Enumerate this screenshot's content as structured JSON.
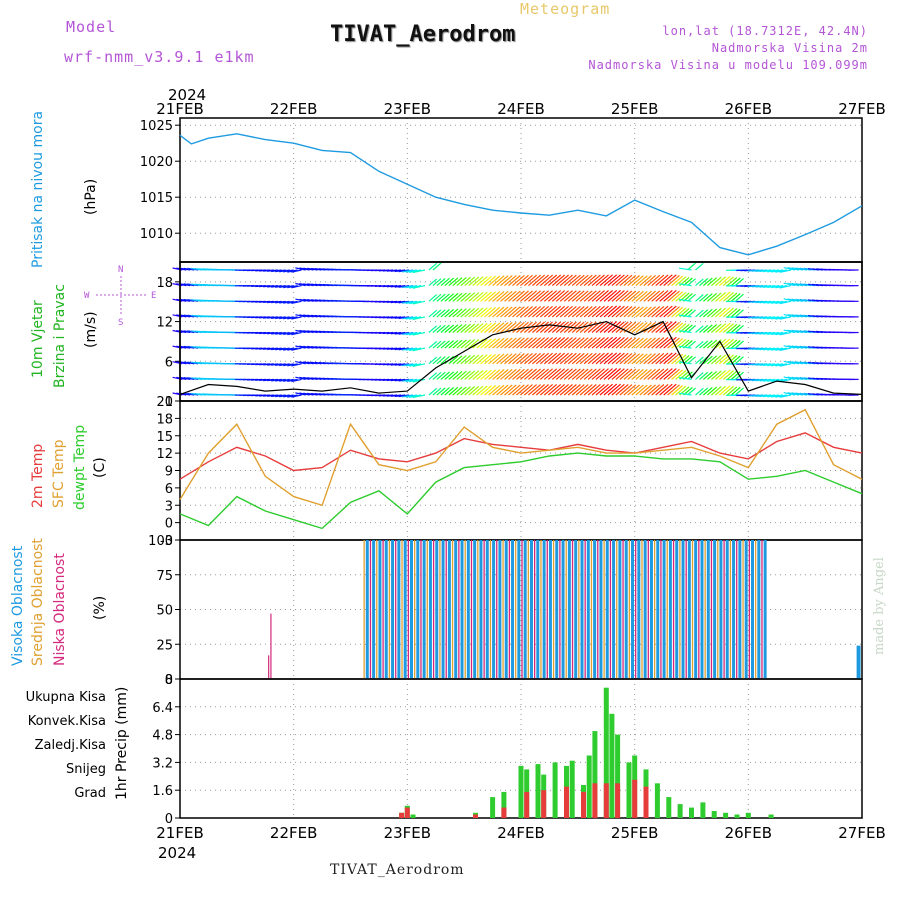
{
  "header": {
    "model_label": "Model",
    "model_name": "wrf-nmm_v3.9.1 e1km",
    "station": "TIVAT_Aerodrom",
    "meteogram": "Meteogram",
    "lonlat": "lon,lat (18.7312E, 42.4N)",
    "altitude": "Nadmorska Visina 2m",
    "model_altitude": "Nadmorska Visina u modelu 109.099m"
  },
  "footer": {
    "station": "TIVAT_Aerodrom",
    "watermark": "made by Angel"
  },
  "x_axis": {
    "year": "2024",
    "dates": [
      "21FEB",
      "22FEB",
      "23FEB",
      "24FEB",
      "25FEB",
      "26FEB",
      "27FEB"
    ]
  },
  "colors": {
    "pressure": "#1e9be0",
    "temp2m": "#e63c3c",
    "sfc_temp": "#e0a030",
    "dewpoint": "#2ecc2e",
    "wind_label": "#21b521",
    "pressure_label": "#1e9be0",
    "cloud_high": "#1e9be0",
    "cloud_mid": "#e0a030",
    "cloud_low": "#d4287c",
    "precip_total": "#2ecc2e",
    "precip_conv": "#e63c3c",
    "precip_frz": "#f07a2a",
    "precip_snow": "#4848d8",
    "precip_hail": "#30c8c8"
  },
  "panels": {
    "pressure": {
      "label": "Pritisak na nivou mora",
      "unit": "(hPa)",
      "ticks": [
        "1025",
        "1020",
        "1015",
        "1010"
      ]
    },
    "wind": {
      "label1": "10m Vjetar",
      "label2": "Brzina i Pravac",
      "unit": "(m/s)",
      "ticks": [
        "18",
        "12",
        "6",
        "0"
      ],
      "compass": {
        "n": "N",
        "s": "S",
        "w": "W",
        "e": "E"
      }
    },
    "temp": {
      "label_2m": "2m Temp",
      "label_sfc": "SFC Temp",
      "label_dew": "dewpt Temp",
      "unit": "(C)",
      "ticks": [
        "21",
        "18",
        "15",
        "12",
        "9",
        "6",
        "3",
        "0",
        "-3"
      ]
    },
    "cloud": {
      "label_high": "Visoka Oblacnost",
      "label_mid": "Srednja Oblacnost",
      "label_low": "Niska Oblacnost",
      "unit": "(%)",
      "ticks": [
        "100",
        "75",
        "50",
        "25",
        "0"
      ]
    },
    "precip": {
      "labels": [
        "Ukupna Kisa",
        "Konvek.Kisa",
        "Zaledj.Kisa",
        "Snijeg",
        "Grad"
      ],
      "axis_label": "1hr Precip (mm)",
      "ticks": [
        "8",
        "6.4",
        "4.8",
        "3.2",
        "1.6",
        "0"
      ]
    }
  },
  "chart_data": [
    {
      "type": "line",
      "title": "Pritisak na nivou mora",
      "ylabel": "(hPa)",
      "ylim": [
        1006,
        1026
      ],
      "x_unit": "days from 21FEB 00 UTC",
      "series": [
        {
          "name": "Pritisak na nivou mora",
          "x": [
            0,
            0.1,
            0.25,
            0.5,
            0.75,
            1.0,
            1.25,
            1.5,
            1.75,
            2.0,
            2.25,
            2.5,
            2.75,
            3.0,
            3.25,
            3.5,
            3.75,
            4.0,
            4.25,
            4.5,
            4.75,
            5.0,
            5.25,
            5.5,
            5.75,
            6.0
          ],
          "values": [
            1023.6,
            1022.4,
            1023.2,
            1023.8,
            1023.0,
            1022.5,
            1021.5,
            1021.2,
            1018.6,
            1016.8,
            1015.0,
            1014.0,
            1013.2,
            1012.8,
            1012.5,
            1013.2,
            1012.4,
            1014.6,
            1013.0,
            1011.5,
            1008.0,
            1007.0,
            1008.2,
            1009.8,
            1011.5,
            1013.8
          ]
        }
      ]
    },
    {
      "type": "line",
      "title": "10m Vjetar Brzina i Pravac",
      "ylabel": "(m/s)",
      "ylim": [
        0,
        21
      ],
      "series": [
        {
          "name": "10m Vjetar",
          "x": [
            0,
            0.25,
            0.5,
            0.75,
            1.0,
            1.25,
            1.5,
            1.75,
            2.0,
            2.25,
            2.5,
            2.75,
            3.0,
            3.25,
            3.5,
            3.75,
            4.0,
            4.25,
            4.5,
            4.75,
            5.0,
            5.25,
            5.5,
            5.75,
            6.0
          ],
          "values": [
            1.0,
            2.5,
            2.2,
            1.5,
            1.8,
            1.5,
            2.0,
            1.2,
            1.5,
            5.0,
            7.5,
            10.0,
            11.0,
            11.5,
            11.0,
            12.0,
            10.0,
            12.0,
            3.5,
            9.0,
            1.5,
            3.0,
            2.5,
            1.2,
            1.0
          ]
        }
      ]
    },
    {
      "type": "line",
      "title": "2m Temp / SFC Temp / dewpt Temp",
      "ylabel": "(C)",
      "ylim": [
        -3,
        21
      ],
      "series": [
        {
          "name": "2m Temp",
          "x": [
            0,
            0.25,
            0.5,
            0.75,
            1.0,
            1.25,
            1.5,
            1.75,
            2.0,
            2.25,
            2.5,
            2.75,
            3.0,
            3.25,
            3.5,
            3.75,
            4.0,
            4.25,
            4.5,
            4.75,
            5.0,
            5.25,
            5.5,
            5.75,
            6.0
          ],
          "values": [
            7.5,
            10.5,
            13.0,
            11.5,
            9.0,
            9.5,
            12.5,
            11.0,
            10.5,
            12.0,
            14.5,
            13.5,
            13.0,
            12.5,
            13.5,
            12.5,
            12.0,
            13.0,
            14.0,
            12.0,
            11.0,
            14.0,
            15.5,
            13.0,
            12.0
          ]
        },
        {
          "name": "SFC Temp",
          "x": [
            0,
            0.25,
            0.5,
            0.75,
            1.0,
            1.25,
            1.5,
            1.75,
            2.0,
            2.25,
            2.5,
            2.75,
            3.0,
            3.25,
            3.5,
            3.75,
            4.0,
            4.25,
            4.5,
            4.75,
            5.0,
            5.25,
            5.5,
            5.75,
            6.0
          ],
          "values": [
            4.0,
            12.0,
            17.0,
            8.0,
            4.5,
            3.0,
            17.0,
            10.0,
            9.0,
            10.5,
            16.5,
            13.0,
            12.0,
            12.5,
            13.0,
            12.0,
            12.0,
            12.5,
            13.0,
            11.5,
            9.5,
            17.0,
            19.5,
            10.0,
            7.5
          ]
        },
        {
          "name": "dewpt Temp",
          "x": [
            0,
            0.25,
            0.5,
            0.75,
            1.0,
            1.25,
            1.5,
            1.75,
            2.0,
            2.25,
            2.5,
            2.75,
            3.0,
            3.25,
            3.5,
            3.75,
            4.0,
            4.25,
            4.5,
            4.75,
            5.0,
            5.25,
            5.5,
            5.75,
            6.0
          ],
          "values": [
            1.5,
            -0.5,
            4.5,
            2.0,
            0.5,
            -1.0,
            3.5,
            5.5,
            1.5,
            7.0,
            9.5,
            10.0,
            10.5,
            11.5,
            12.0,
            11.5,
            11.5,
            11.0,
            11.0,
            10.5,
            7.5,
            8.0,
            9.0,
            7.0,
            5.0
          ]
        }
      ]
    },
    {
      "type": "bar",
      "title": "Oblacnost",
      "ylabel": "(%)",
      "ylim": [
        0,
        100
      ],
      "segments": [
        {
          "name": "Niska Oblacnost",
          "x": [
            0.78,
            0.8
          ],
          "values": [
            17,
            47
          ]
        },
        {
          "name": "Visoka/Srednja/Niska Oblacnost",
          "x_start": 1.62,
          "x_end": 5.15,
          "value": 100
        },
        {
          "name": "Visoka Oblacnost",
          "x": [
            5.97
          ],
          "values": [
            24
          ]
        }
      ]
    },
    {
      "type": "bar",
      "title": "1hr Precip",
      "ylabel": "1hr Precip (mm)",
      "ylim": [
        0,
        8
      ],
      "series": [
        {
          "name": "Ukupna Kisa",
          "x": [
            1.95,
            2.0,
            2.05,
            2.6,
            2.75,
            2.85,
            3.0,
            3.05,
            3.15,
            3.2,
            3.3,
            3.4,
            3.45,
            3.55,
            3.6,
            3.65,
            3.75,
            3.8,
            3.85,
            3.95,
            4.0,
            4.1,
            4.2,
            4.3,
            4.4,
            4.5,
            4.6,
            4.7,
            4.8,
            4.9,
            5.0,
            5.2
          ],
          "values": [
            0.3,
            0.7,
            0.2,
            0.3,
            1.2,
            1.5,
            3.0,
            2.8,
            3.1,
            2.5,
            3.2,
            3.0,
            3.3,
            1.9,
            3.6,
            5.0,
            7.5,
            6.0,
            4.8,
            3.2,
            3.6,
            2.8,
            2.0,
            1.2,
            0.8,
            0.6,
            0.9,
            0.4,
            0.3,
            0.2,
            0.3,
            0.2
          ]
        },
        {
          "name": "Konvek.Kisa",
          "x": [
            1.95,
            2.0,
            2.6,
            2.85,
            3.05,
            3.2,
            3.4,
            3.55,
            3.65,
            3.75,
            3.85,
            4.0,
            4.1
          ],
          "values": [
            0.3,
            0.6,
            0.2,
            0.6,
            1.5,
            1.6,
            1.8,
            1.5,
            2.0,
            2.0,
            2.0,
            2.2,
            1.8
          ]
        }
      ]
    }
  ]
}
